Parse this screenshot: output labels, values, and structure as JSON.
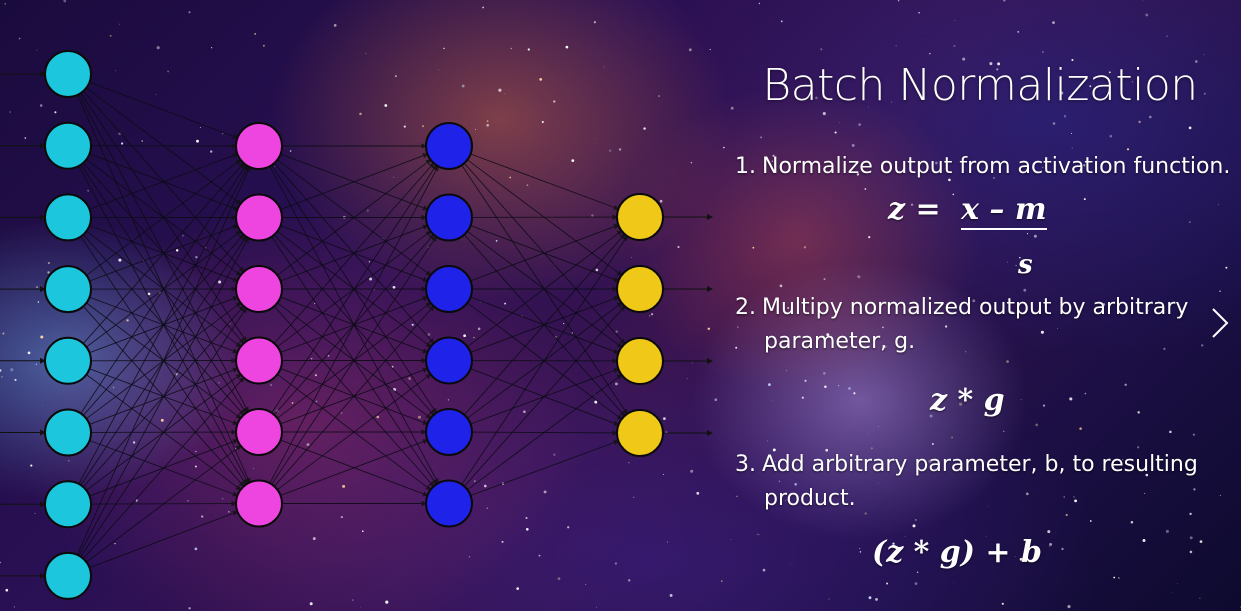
{
  "slide": {
    "title": "Batch Normalization",
    "steps": [
      {
        "number": "1.",
        "line1": "Normalize output from activation function.",
        "line2": ""
      },
      {
        "number": "2.",
        "line1": "Multipy normalized output by arbitrary",
        "line2": "parameter, g."
      },
      {
        "number": "3.",
        "line1": "Add arbitrary parameter, b, to resulting",
        "line2": "product."
      }
    ],
    "formula1": {
      "lhs": "z =",
      "numerator": "x – m",
      "denominator": "s"
    },
    "formula2": "z * g",
    "formula3": "(z * g) + b"
  },
  "network": {
    "layers": [
      {
        "nodes": 8,
        "color": "#1cc6dc"
      },
      {
        "nodes": 6,
        "color": "#ee44e0"
      },
      {
        "nodes": 6,
        "color": "#1f22e8"
      },
      {
        "nodes": 4,
        "color": "#f0c818"
      }
    ]
  },
  "navigation": {
    "next_icon": "chevron-right-icon"
  }
}
